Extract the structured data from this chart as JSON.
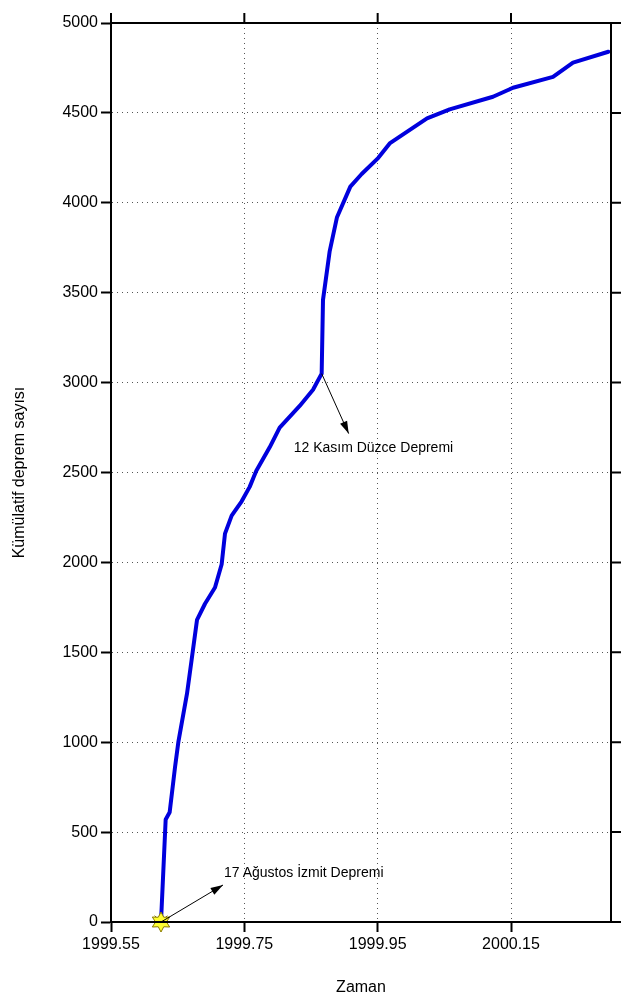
{
  "chart_data": {
    "type": "line",
    "xlabel": "Zaman",
    "ylabel": "Kümülatif deprem sayısı",
    "xlim": [
      1999.55,
      2000.3
    ],
    "xticks": [
      1999.55,
      1999.75,
      1999.95,
      2000.15
    ],
    "ylim": [
      0,
      5000
    ],
    "yticks": [
      0,
      500,
      1000,
      1500,
      2000,
      2500,
      3000,
      3500,
      4000,
      4500,
      5000
    ],
    "grid": true,
    "legend": false,
    "line_style": "solid",
    "series": [
      {
        "color": "#0000dd",
        "marker": "none",
        "x": [
          1999.625,
          1999.632,
          1999.638,
          1999.646,
          1999.651,
          1999.664,
          1999.671,
          1999.679,
          1999.691,
          1999.706,
          1999.716,
          1999.721,
          1999.731,
          1999.746,
          1999.758,
          1999.768,
          1999.788,
          1999.803,
          1999.813,
          1999.833,
          1999.853,
          1999.866,
          1999.868,
          1999.878,
          1999.889,
          1999.909,
          1999.926,
          1999.951,
          1999.968,
          2000.024,
          2000.058,
          2000.123,
          2000.153,
          2000.213,
          2000.243,
          2000.296
        ],
        "values": [
          0,
          570,
          610,
          860,
          1000,
          1270,
          1460,
          1680,
          1770,
          1860,
          1990,
          2160,
          2260,
          2340,
          2420,
          2510,
          2640,
          2750,
          2790,
          2870,
          2960,
          3050,
          3460,
          3730,
          3920,
          4090,
          4160,
          4250,
          4330,
          4470,
          4520,
          4590,
          4640,
          4700,
          4780,
          4840
        ]
      },
      {
        "type": "scatter",
        "color": "#ffff33",
        "x": [
          1999.625
        ],
        "values": [
          0
        ]
      }
    ],
    "annotations": [
      {
        "text": "12 Kasım Düzce Depremi",
        "x": 1999.866,
        "y": 3050
      },
      {
        "text": "17 Ağustos İzmit Depremi",
        "x": 1999.625,
        "y": 0
      }
    ]
  }
}
